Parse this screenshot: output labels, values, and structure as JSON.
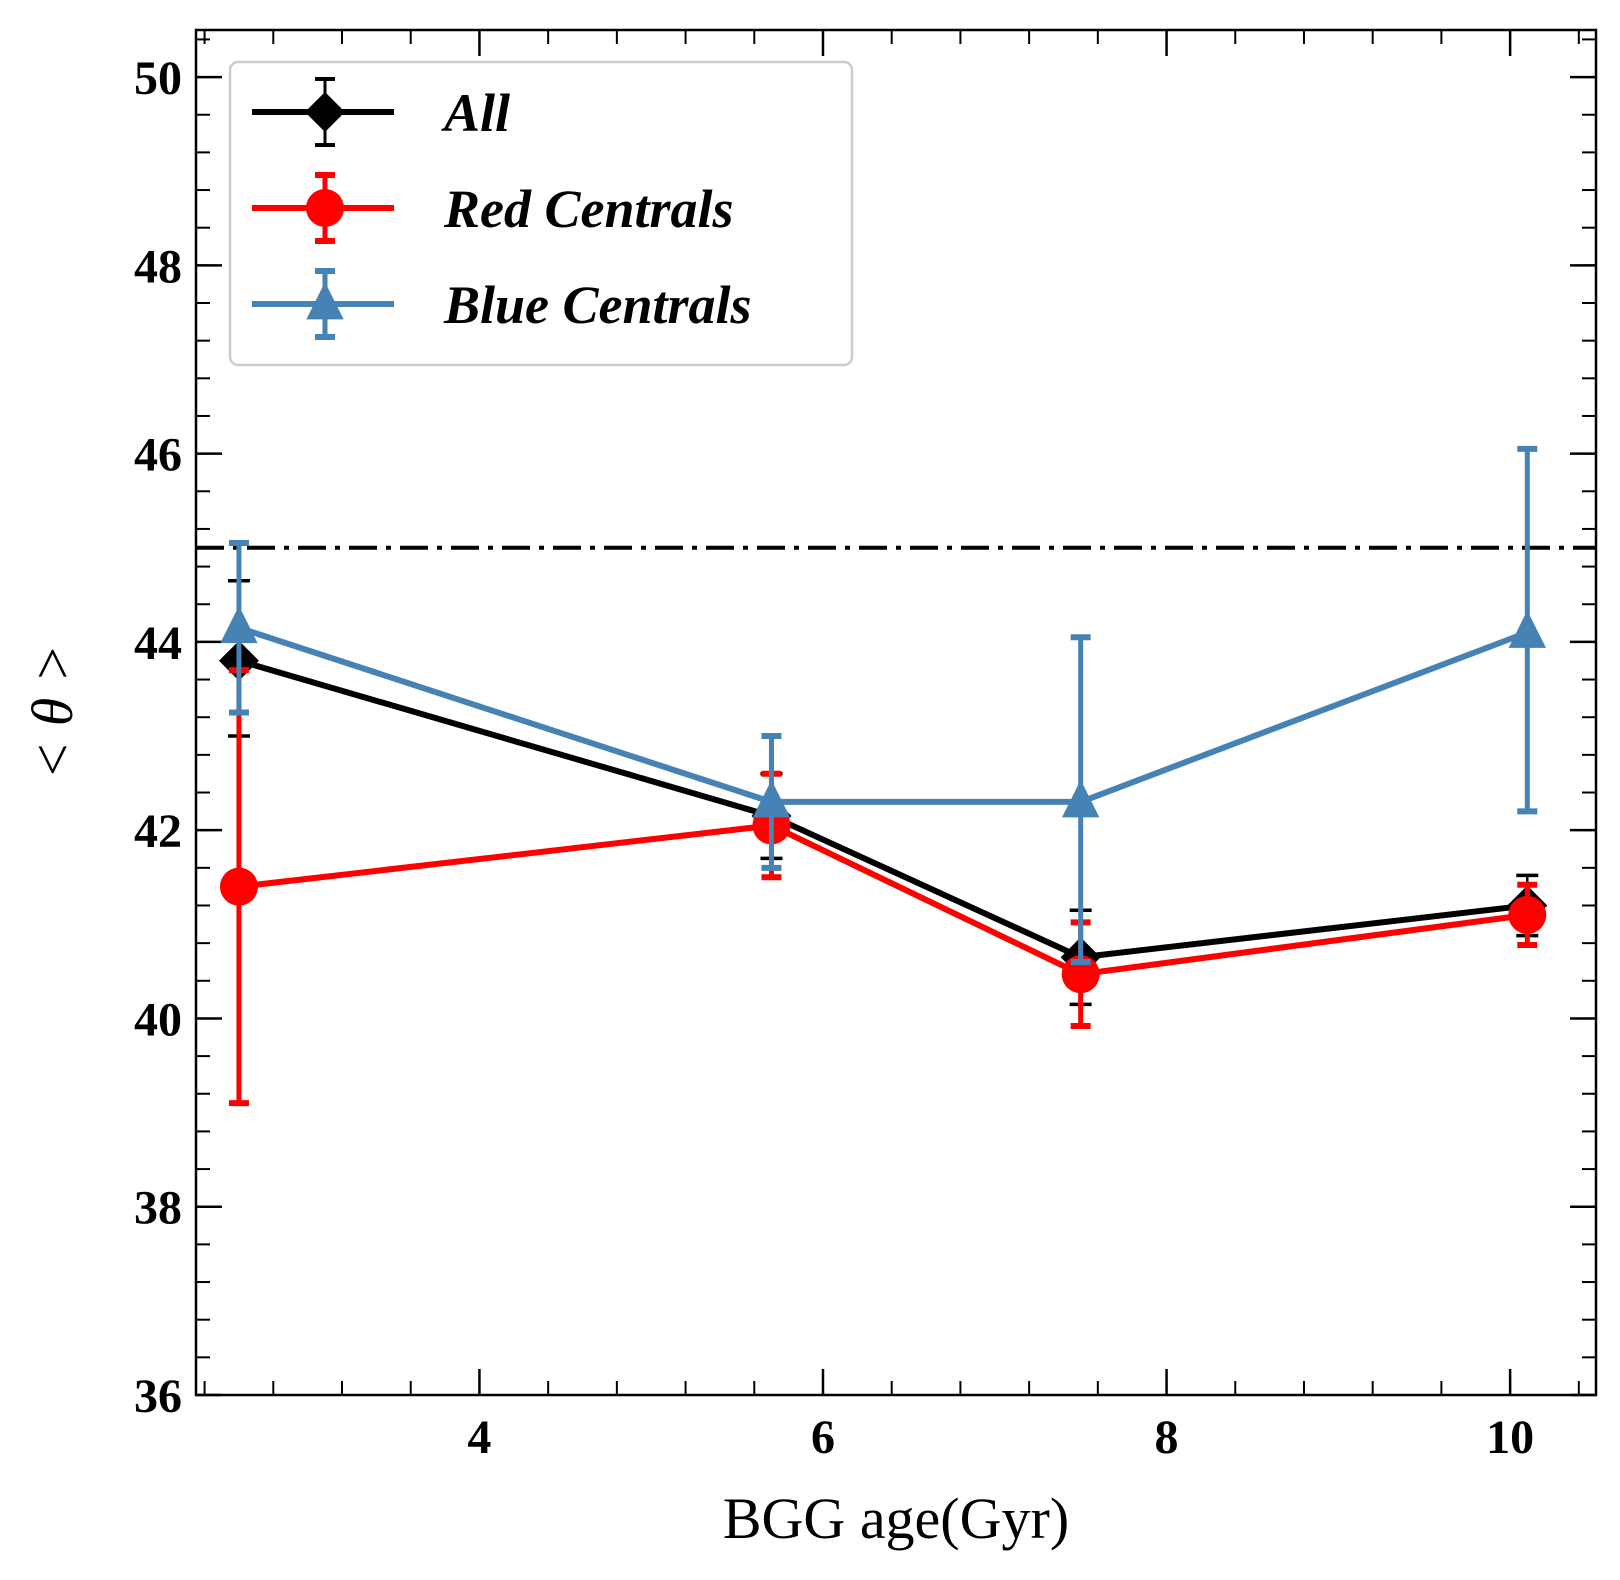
{
  "chart_data": {
    "type": "line",
    "xlabel": "BGG age(Gyr)",
    "ylabel": "< θ >",
    "xlim": [
      2.35,
      10.5
    ],
    "ylim": [
      36,
      50.5
    ],
    "xticks": [
      4,
      6,
      8,
      10
    ],
    "xtick_labels": [
      "4",
      "6",
      "8",
      "10"
    ],
    "yticks": [
      36,
      38,
      40,
      42,
      44,
      46,
      48,
      50
    ],
    "ytick_labels": [
      "36",
      "38",
      "40",
      "42",
      "44",
      "46",
      "48",
      "50"
    ],
    "reference_line": {
      "y": 45,
      "style": "dash-dot"
    },
    "legend_position": "top-left",
    "series": [
      {
        "name": "All",
        "color": "#000000",
        "marker": "diamond",
        "x": [
          2.6,
          5.7,
          7.5,
          10.1
        ],
        "y": [
          43.8,
          42.15,
          40.65,
          41.2
        ],
        "err_low": [
          0.8,
          0.45,
          0.5,
          0.32
        ],
        "err_high": [
          0.85,
          0.45,
          0.5,
          0.32
        ]
      },
      {
        "name": "Red Centrals",
        "color": "#ff0000",
        "marker": "circle",
        "x": [
          2.6,
          5.7,
          7.5,
          10.1
        ],
        "y": [
          41.4,
          42.05,
          40.47,
          41.1
        ],
        "err_low": [
          2.3,
          0.55,
          0.55,
          0.32
        ],
        "err_high": [
          2.3,
          0.55,
          0.55,
          0.32
        ]
      },
      {
        "name": "Blue Centrals",
        "color": "#4682b4",
        "marker": "triangle",
        "x": [
          2.6,
          5.7,
          7.5,
          10.1
        ],
        "y": [
          44.15,
          42.3,
          42.3,
          44.1
        ],
        "err_low": [
          0.9,
          0.7,
          1.7,
          1.9
        ],
        "err_high": [
          0.9,
          0.7,
          1.75,
          1.95
        ]
      }
    ]
  }
}
